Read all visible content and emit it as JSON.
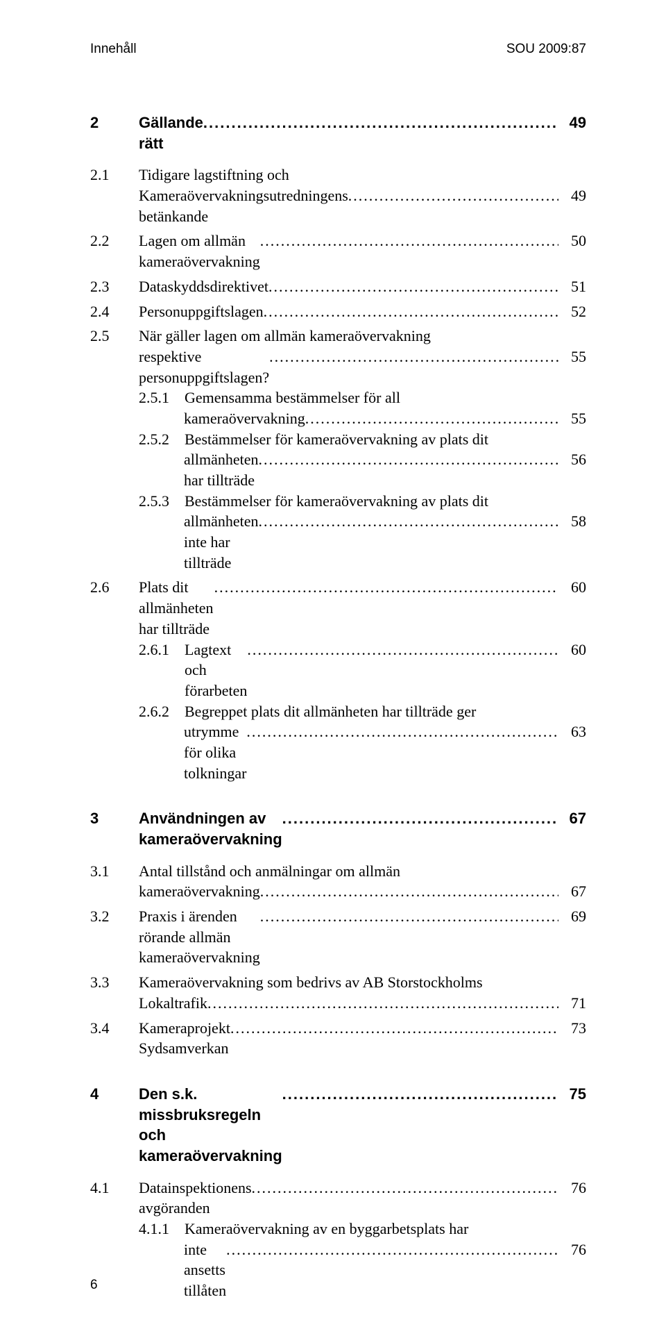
{
  "header": {
    "left": "Innehåll",
    "right": "SOU 2009:87"
  },
  "entries": [
    {
      "kind": "chapter",
      "num": "2",
      "title": "Gällande rätt",
      "page": "49",
      "gap_after": "md"
    },
    {
      "kind": "section",
      "num": "2.1",
      "title": "Tidigare lagstiftning och",
      "page": "",
      "cont": true
    },
    {
      "kind": "cont",
      "title": "Kameraövervakningsutredningens betänkande",
      "page": "49",
      "gap_after": "sm"
    },
    {
      "kind": "section",
      "num": "2.2",
      "title": "Lagen om allmän kameraövervakning",
      "page": "50",
      "gap_after": "sm"
    },
    {
      "kind": "section",
      "num": "2.3",
      "title": "Dataskyddsdirektivet",
      "page": "51",
      "gap_after": "sm"
    },
    {
      "kind": "section",
      "num": "2.4",
      "title": "Personuppgiftslagen",
      "page": "52",
      "gap_after": "sm"
    },
    {
      "kind": "section",
      "num": "2.5",
      "title": "När gäller lagen om allmän kameraövervakning",
      "page": "",
      "cont": true
    },
    {
      "kind": "cont",
      "title": "respektive personuppgiftslagen?",
      "page": "55"
    },
    {
      "kind": "subsection",
      "num": "2.5.1",
      "title": "Gemensamma bestämmelser för all",
      "page": "",
      "cont": true
    },
    {
      "kind": "cont-sub",
      "title": "kameraövervakning",
      "page": "55"
    },
    {
      "kind": "subsection",
      "num": "2.5.2",
      "title": "Bestämmelser för kameraövervakning av plats dit",
      "page": "",
      "cont": true
    },
    {
      "kind": "cont-sub",
      "title": "allmänheten har tillträde",
      "page": "56"
    },
    {
      "kind": "subsection",
      "num": "2.5.3",
      "title": "Bestämmelser för kameraövervakning av plats dit",
      "page": "",
      "cont": true
    },
    {
      "kind": "cont-sub",
      "title": "allmänheten inte har tillträde",
      "page": "58",
      "gap_after": "sm"
    },
    {
      "kind": "section",
      "num": "2.6",
      "title": "Plats dit allmänheten har tillträde",
      "page": "60"
    },
    {
      "kind": "subsection",
      "num": "2.6.1",
      "title": "Lagtext och förarbeten",
      "page": "60"
    },
    {
      "kind": "subsection",
      "num": "2.6.2",
      "title": "Begreppet plats dit allmänheten har tillträde ger",
      "page": "",
      "cont": true
    },
    {
      "kind": "cont-sub",
      "title": "utrymme för olika tolkningar",
      "page": "63",
      "gap_after": "lg"
    },
    {
      "kind": "chapter",
      "num": "3",
      "title": "Användningen av kameraövervakning",
      "page": "67",
      "gap_after": "md"
    },
    {
      "kind": "section",
      "num": "3.1",
      "title": "Antal tillstånd och anmälningar om allmän",
      "page": "",
      "cont": true
    },
    {
      "kind": "cont",
      "title": "kameraövervakning",
      "page": "67",
      "gap_after": "sm"
    },
    {
      "kind": "section",
      "num": "3.2",
      "title": "Praxis i ärenden rörande allmän kameraövervakning",
      "page": "69",
      "gap_after": "sm"
    },
    {
      "kind": "section",
      "num": "3.3",
      "title": "Kameraövervakning som bedrivs av AB Storstockholms",
      "page": "",
      "cont": true
    },
    {
      "kind": "cont",
      "title": "Lokaltrafik",
      "page": "71",
      "gap_after": "sm"
    },
    {
      "kind": "section",
      "num": "3.4",
      "title": "Kameraprojekt Sydsamverkan",
      "page": "73",
      "gap_after": "lg"
    },
    {
      "kind": "chapter",
      "num": "4",
      "title": "Den s.k. missbruksregeln och kameraövervakning",
      "page": "75",
      "gap_after": "md"
    },
    {
      "kind": "section",
      "num": "4.1",
      "title": "Datainspektionens avgöranden",
      "page": "76"
    },
    {
      "kind": "subsection",
      "num": "4.1.1",
      "title": "Kameraövervakning av en byggarbetsplats har",
      "page": "",
      "cont": true
    },
    {
      "kind": "cont-sub",
      "title": "inte ansetts tillåten",
      "page": "76"
    }
  ],
  "footer_page": "6",
  "style": {
    "leader_char": ".",
    "num_col_width_section": 70,
    "num_col_width_subsection": 66,
    "chapter_num_width": 70,
    "font_size_body": 22,
    "font_size_header": 19,
    "text_color": "#000000",
    "background_color": "#ffffff"
  }
}
